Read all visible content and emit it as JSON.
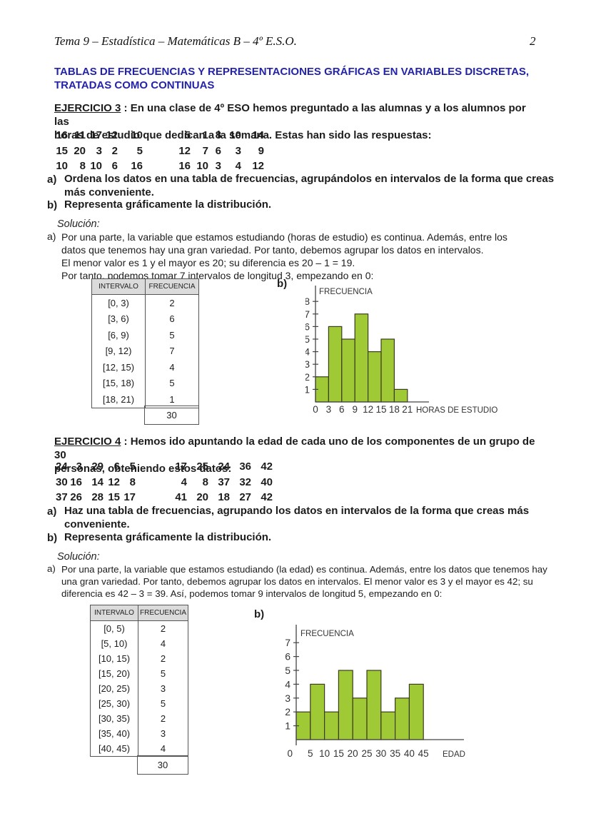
{
  "page": {
    "header": "Tema 9 – Estadística – Matemáticas B – 4º E.S.O.",
    "number": "2"
  },
  "title": {
    "line1": "TABLAS DE FRECUENCIAS Y REPRESENTACIONES GRÁFICAS EN VARIABLES DISCRETAS,",
    "line2": "TRATADAS COMO CONTINUAS"
  },
  "ej3": {
    "heading_label": "EJERCICIO 3",
    "intro_rest": " : En una clase de 4º ESO hemos preguntado a las alumnas y a los alumnos por las",
    "intro_line2": "horas de estudio que dedican a la semana. Estas han sido las respuestas:",
    "data_rows": [
      [
        "16",
        "11",
        "17",
        "12",
        "10",
        "5",
        "1",
        "8",
        "10",
        "14"
      ],
      [
        "15",
        "20",
        "3",
        "2",
        "5",
        "12",
        "7",
        "6",
        "3",
        "9"
      ],
      [
        "10",
        "8",
        "10",
        "6",
        "16",
        "16",
        "10",
        "3",
        "4",
        "12"
      ]
    ],
    "item_a": {
      "label": "a)",
      "line1": "Ordena los datos en una tabla de frecuencias, agrupándolos en intervalos de la forma que creas",
      "line2": "más conveniente."
    },
    "item_b": {
      "label": "b)",
      "text": "Representa gráficamente la distribución."
    },
    "solucion": "Solución:",
    "sol_label": "a)",
    "sol_lines": [
      "Por una parte, la variable que estamos estudiando (horas de estudio) es continua. Además, entre los",
      "datos que tenemos hay una gran variedad. Por tanto, debemos agrupar los datos en intervalos.",
      "El menor valor es 1 y el mayor es 20; su diferencia es  20 – 1 = 19.",
      "Por tanto, podemos tomar 7 intervalos de longitud 3, empezando en 0:"
    ],
    "graph_label": "b)",
    "table": {
      "headers": [
        "INTERVALO",
        "FRECUENCIA"
      ],
      "rows": [
        [
          "[0, 3)",
          "2"
        ],
        [
          "[3, 6)",
          "6"
        ],
        [
          "[6, 9)",
          "5"
        ],
        [
          "[9, 12)",
          "7"
        ],
        [
          "[12, 15)",
          "4"
        ],
        [
          "[15, 18)",
          "5"
        ],
        [
          "[18, 21)",
          "1"
        ]
      ],
      "total": "30"
    }
  },
  "ej4": {
    "heading_label": "EJERCICIO 4",
    "intro_rest": " : Hemos ido apuntando la edad de cada uno de los componentes de un grupo de 30",
    "intro_line2": "personas, obteniendo estos datos:",
    "data_rows": [
      [
        "24",
        "3",
        "29",
        "6",
        "5",
        "17",
        "25",
        "24",
        "36",
        "42"
      ],
      [
        "30",
        "16",
        "14",
        "12",
        "8",
        "4",
        "8",
        "37",
        "32",
        "40"
      ],
      [
        "37",
        "26",
        "28",
        "15",
        "17",
        "41",
        "20",
        "18",
        "27",
        "42"
      ]
    ],
    "item_a": {
      "label": "a)",
      "line1": "Haz una tabla de frecuencias, agrupando los datos en intervalos de la forma que creas más",
      "line2": "conveniente."
    },
    "item_b": {
      "label": "b)",
      "text": "Representa gráficamente la distribución."
    },
    "solucion": "Solución:",
    "sol_label": "a)",
    "sol_lines": [
      "Por una parte, la variable que estamos estudiando (la edad) es continua. Además, entre los datos que tenemos hay",
      "una gran variedad. Por tanto, debemos agrupar los datos en intervalos. El menor valor es 3 y el mayor es 42; su",
      "diferencia es  42 – 3 = 39. Así, podemos tomar 9 intervalos de longitud 5, empezando en 0:"
    ],
    "graph_label": "b)",
    "table": {
      "headers": [
        "INTERVALO",
        "FRECUENCIA"
      ],
      "rows": [
        [
          "[0, 5)",
          "2"
        ],
        [
          "[5, 10)",
          "4"
        ],
        [
          "[10, 15)",
          "2"
        ],
        [
          "[15, 20)",
          "5"
        ],
        [
          "[20, 25)",
          "3"
        ],
        [
          "[25, 30)",
          "5"
        ],
        [
          "[30, 35)",
          "2"
        ],
        [
          "[35, 40)",
          "3"
        ],
        [
          "[40, 45)",
          "4"
        ]
      ],
      "total": "30"
    }
  },
  "chart_data": [
    {
      "type": "bar",
      "title": "",
      "ylabel": "FRECUENCIA",
      "xlabel": "HORAS DE ESTUDIO",
      "bin_width": 3,
      "categories": [
        "[0, 3)",
        "[3, 6)",
        "[6, 9)",
        "[9, 12)",
        "[12, 15)",
        "[15, 18)",
        "[18, 21)"
      ],
      "values": [
        2,
        6,
        5,
        7,
        4,
        5,
        1
      ],
      "x_ticks": [
        0,
        3,
        6,
        9,
        12,
        15,
        18,
        21
      ],
      "y_ticks": [
        1,
        2,
        3,
        4,
        5,
        6,
        7,
        8
      ],
      "ylim": [
        0,
        8
      ],
      "xlim": [
        0,
        21
      ],
      "grid": false,
      "bar_color": "#9fc935",
      "bar_border_color": "#3c3c1e"
    },
    {
      "type": "bar",
      "title": "",
      "ylabel": "FRECUENCIA",
      "xlabel": "EDAD",
      "bin_width": 5,
      "categories": [
        "[0, 5)",
        "[5, 10)",
        "[10, 15)",
        "[15, 20)",
        "[20, 25)",
        "[25, 30)",
        "[30, 35)",
        "[35, 40)",
        "[40, 45)"
      ],
      "values": [
        2,
        4,
        2,
        5,
        3,
        5,
        2,
        3,
        4
      ],
      "x_ticks": [
        0,
        5,
        10,
        15,
        20,
        25,
        30,
        35,
        40,
        45
      ],
      "y_ticks": [
        1,
        2,
        3,
        4,
        5,
        6,
        7
      ],
      "ylim": [
        0,
        7
      ],
      "xlim": [
        0,
        45
      ],
      "grid": false,
      "bar_color": "#9fc935",
      "bar_border_color": "#3c3c1e"
    }
  ]
}
